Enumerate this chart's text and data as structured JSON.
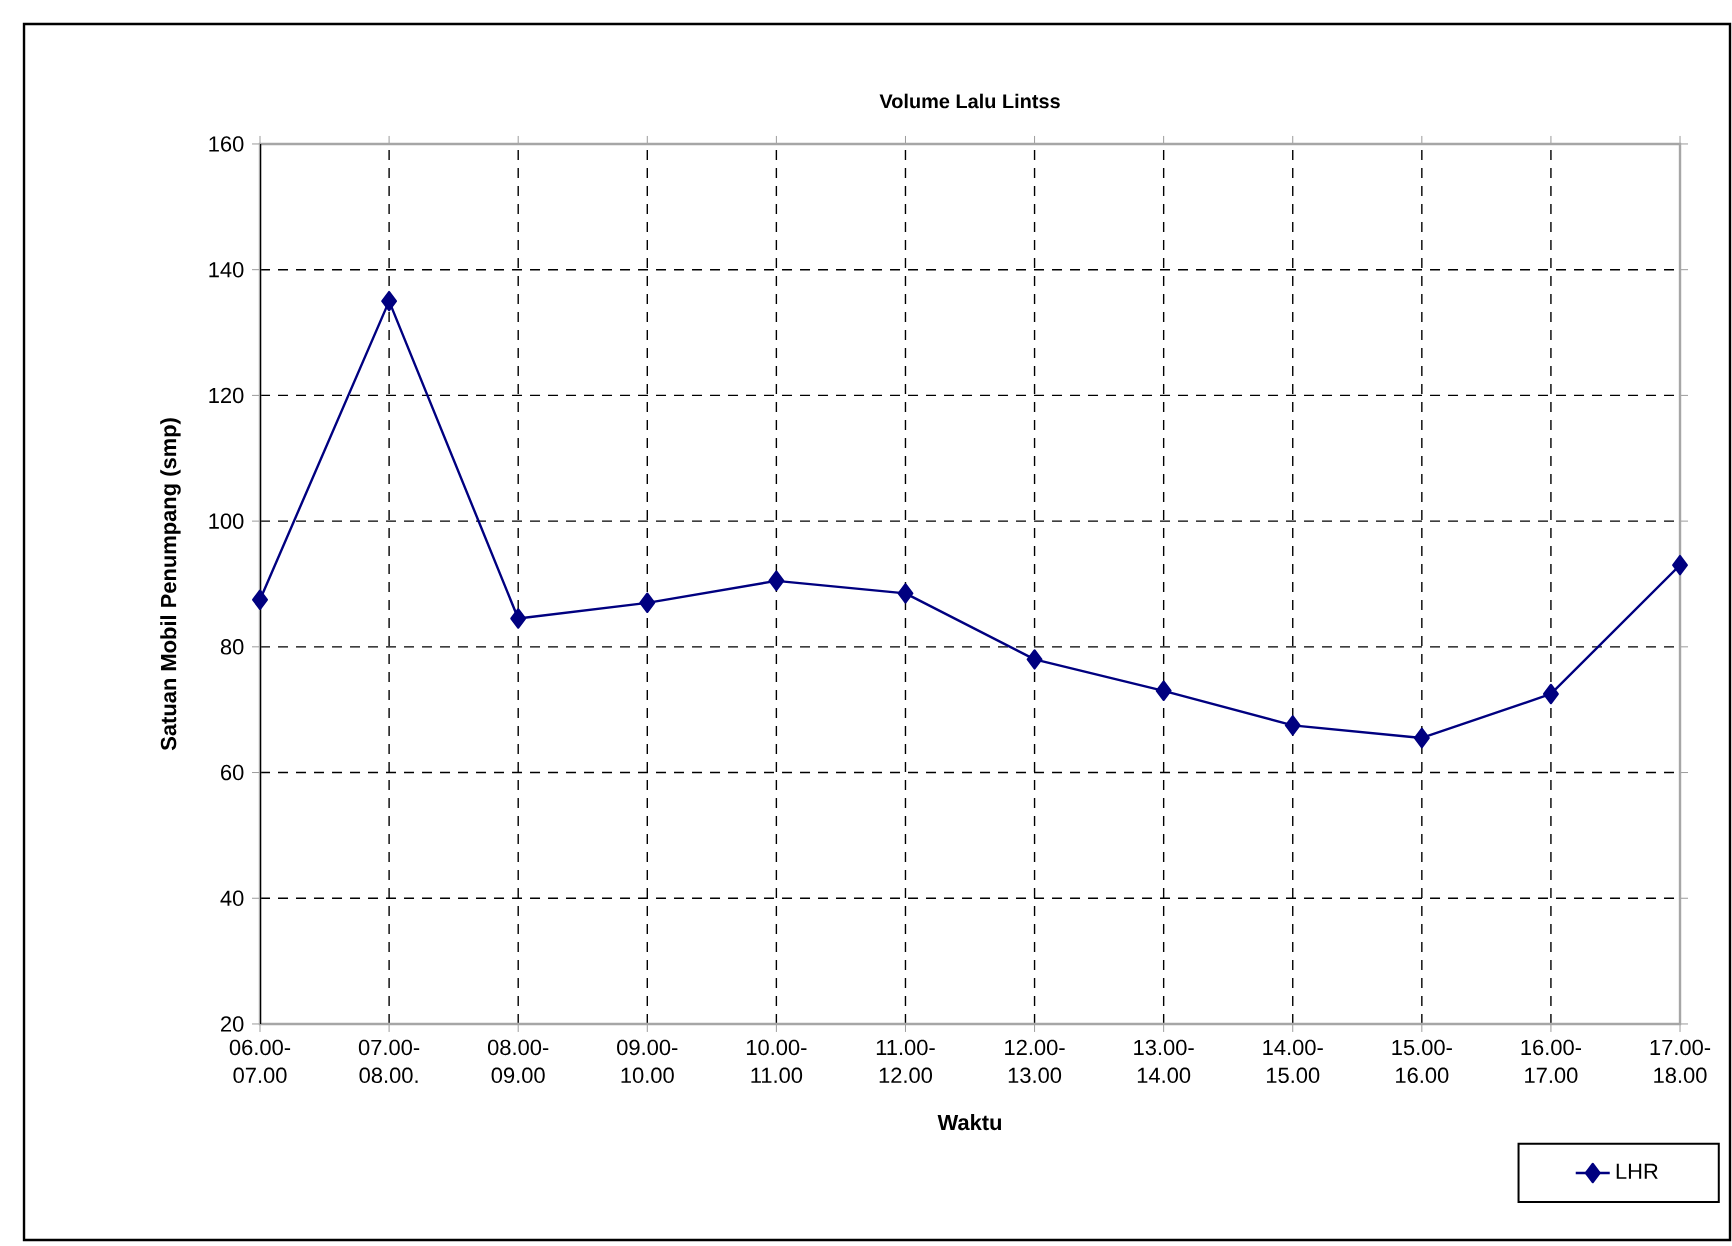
{
  "chart_data": {
    "type": "line",
    "title": "Volume Lalu Lintss",
    "xlabel": "Waktu",
    "ylabel": "Satuan Mobil Penumpang (smp)",
    "categories": [
      "06.00- 07.00",
      "07.00- 08.00.",
      "08.00- 09.00",
      "09.00- 10.00",
      "10.00- 11.00",
      "11.00- 12.00",
      "12.00- 13.00",
      "13.00- 14.00",
      "14.00- 15.00",
      "15.00- 16.00",
      "16.00- 17.00",
      "17.00- 18.00"
    ],
    "series": [
      {
        "name": "LHR",
        "color": "#000080",
        "values": [
          87.5,
          135,
          84.5,
          87,
          90.5,
          88.5,
          78,
          73,
          67.5,
          65.5,
          72.5,
          93
        ]
      }
    ],
    "ylim": [
      20,
      160
    ],
    "yticks": [
      20,
      40,
      60,
      80,
      100,
      120,
      140,
      160
    ],
    "grid": true,
    "legend": "bottom right",
    "marker": "diamond",
    "line_style": "solid"
  }
}
